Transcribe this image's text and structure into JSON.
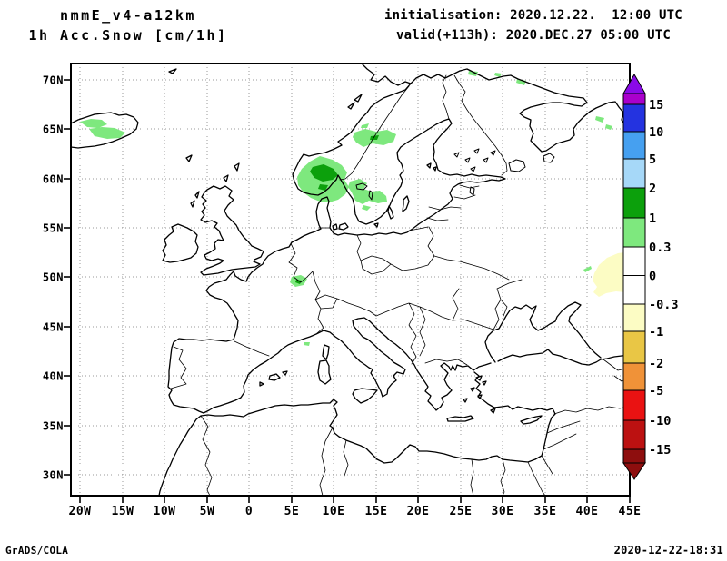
{
  "header": {
    "line1": "nmmE_v4-a12km",
    "line2": "1h Acc.Snow [cm/1h]"
  },
  "run_info": {
    "line1": "initialisation: 2020.12.22.  12:00 UTC",
    "line2": "valid(+113h): 2020.DEC.27 05:00 UTC"
  },
  "footer": {
    "credit": "GrADS/COLA",
    "timestamp": "2020-12-22-18:31"
  },
  "map": {
    "lat_ticks": [
      "70N",
      "65N",
      "60N",
      "55N",
      "50N",
      "45N",
      "40N",
      "35N",
      "30N"
    ],
    "lon_ticks": [
      "20W",
      "15W",
      "10W",
      "5W",
      "0",
      "5E",
      "10E",
      "15E",
      "20E",
      "25E",
      "30E",
      "35E",
      "40E",
      "45E"
    ],
    "projection": "latlon",
    "domain": "Europe 21W-45E, 28N-71N"
  },
  "colorbar": {
    "units": "cm/1h",
    "labels": [
      "15",
      "10",
      "5",
      "2",
      "1",
      "0.3",
      "0",
      "-0.3",
      "-1",
      "-2",
      "-5",
      "-10",
      "-15"
    ],
    "segment_colors": [
      "#aa00cc",
      "#2433e0",
      "#46a0f0",
      "#a6d8f8",
      "#0ca00c",
      "#7ee87e",
      "#ffffff",
      "#ffffff",
      "#fcfcc4",
      "#e9c645",
      "#f09238",
      "#ea1212",
      "#bc1111",
      "#8e0e0e"
    ],
    "cap_top_color": "#8a0ae8",
    "cap_bottom_color": "#8e0e0e"
  },
  "palette": {
    "light_green": "#7ee87e",
    "dark_green": "#0ca00c",
    "pale_yellow": "#fcfcc4",
    "grid_gray": "#999999",
    "ink": "#000000"
  },
  "snow_areas": [
    {
      "region": "Iceland interior",
      "value": "0.3-1 cm/1h"
    },
    {
      "region": "Southern Norway mountains",
      "value": "0.3-2 cm/1h (dark green core 1-2)"
    },
    {
      "region": "Central Sweden",
      "value": "0.3-1 cm/1h"
    },
    {
      "region": "Southern Sweden / Gotaland",
      "value": "0.3-1 cm/1h"
    },
    {
      "region": "Finnmark / Kola specks",
      "value": "0.3-1 cm/1h"
    },
    {
      "region": "Belgium / Ardennes",
      "value": "0.3-2 cm/1h"
    },
    {
      "region": "Liguria (N Italy)",
      "value": "0.3-1 cm/1h"
    },
    {
      "region": "East map edge ~44E 50-53N",
      "value": "-1 to -0.3 cm/1h"
    }
  ]
}
